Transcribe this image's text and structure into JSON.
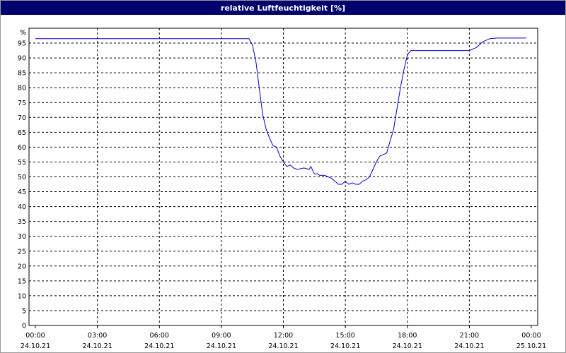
{
  "title": "relative Luftfeuchtigkeit [%]",
  "colors": {
    "titlebar": "#00006e",
    "line": "#0000cc",
    "grid": "#000000"
  },
  "chart_data": {
    "type": "line",
    "title": "relative Luftfeuchtigkeit [%]",
    "y_unit_label": "%",
    "ylim": [
      0,
      100
    ],
    "ytick_labels": [
      "0",
      "5",
      "10",
      "15",
      "20",
      "25",
      "30",
      "35",
      "40",
      "45",
      "50",
      "55",
      "60",
      "65",
      "70",
      "75",
      "80",
      "85",
      "90",
      "95"
    ],
    "xlim_hours": [
      0,
      24
    ],
    "xtick_labels": [
      {
        "time": "00:00",
        "date": "24.10.21"
      },
      {
        "time": "03:00",
        "date": "24.10.21"
      },
      {
        "time": "06:00",
        "date": "24.10.21"
      },
      {
        "time": "09:00",
        "date": "24.10.21"
      },
      {
        "time": "12:00",
        "date": "24.10.21"
      },
      {
        "time": "15:00",
        "date": "24.10.21"
      },
      {
        "time": "18:00",
        "date": "24.10.21"
      },
      {
        "time": "21:00",
        "date": "24.10.21"
      },
      {
        "time": "00:00",
        "date": "25.10.21"
      }
    ],
    "grid": true,
    "series": [
      {
        "color": "#0000cc",
        "x": [
          "00:00",
          "10:20",
          "10:30",
          "10:40",
          "10:50",
          "11:00",
          "11:10",
          "11:20",
          "11:30",
          "11:40",
          "11:50",
          "12:00",
          "12:10",
          "12:20",
          "12:30",
          "12:40",
          "13:00",
          "13:15",
          "13:20",
          "13:30",
          "13:40",
          "13:45",
          "14:00",
          "14:10",
          "14:20",
          "14:30",
          "14:40",
          "14:50",
          "15:00",
          "15:10",
          "15:20",
          "15:30",
          "15:40",
          "15:50",
          "16:00",
          "16:10",
          "16:20",
          "16:30",
          "16:40",
          "17:00",
          "17:20",
          "17:40",
          "17:50",
          "18:00",
          "18:10",
          "18:20",
          "19:00",
          "20:00",
          "21:00",
          "21:20",
          "21:40",
          "22:00",
          "22:20",
          "23:00",
          "23:45"
        ],
        "y": [
          96.5,
          96.5,
          94.5,
          89,
          80,
          71,
          66,
          63,
          60.5,
          60,
          57,
          55,
          53.5,
          54,
          53,
          52.5,
          53,
          52.5,
          53.5,
          51,
          51,
          50.5,
          50.5,
          50,
          49.5,
          48.5,
          47.5,
          47.5,
          48.5,
          47.5,
          48,
          47.5,
          47.5,
          48.5,
          49,
          50,
          52.5,
          55,
          57,
          58,
          66,
          80,
          86,
          91,
          92.5,
          92.5,
          92.5,
          92.5,
          92.5,
          93.5,
          95.5,
          96.5,
          96.7,
          96.7,
          96.7
        ]
      }
    ]
  }
}
